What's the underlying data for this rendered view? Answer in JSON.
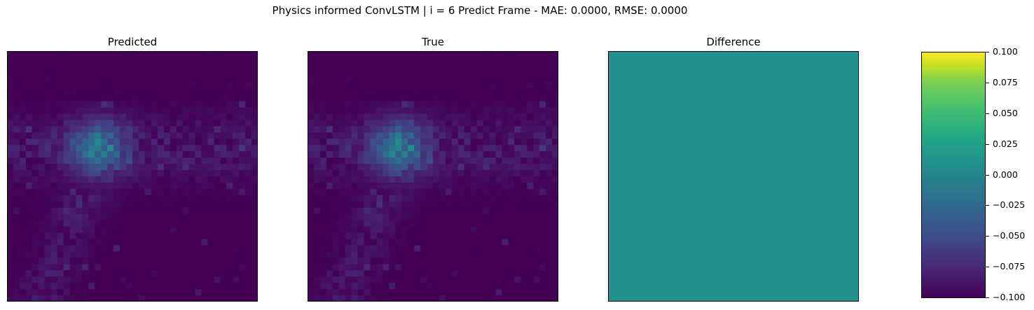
{
  "figure": {
    "suptitle": "Physics informed ConvLSTM | i = 6 Predict Frame - MAE: 0.0000, RMSE: 0.0000"
  },
  "chart_data": [
    {
      "type": "heatmap",
      "title": "Predicted",
      "grid_size": [
        40,
        40
      ],
      "colormap": "viridis",
      "description_source": "visual",
      "axes_ticks": "none"
    },
    {
      "type": "heatmap",
      "title": "True",
      "grid_size": [
        40,
        40
      ],
      "colormap": "viridis",
      "axes_ticks": "none"
    },
    {
      "type": "heatmap",
      "title": "Difference",
      "grid_size": [
        40,
        40
      ],
      "colormap": "viridis",
      "uniform_value": 0.0,
      "axes_ticks": "none"
    }
  ],
  "colorbar": {
    "colormap": "viridis",
    "range": [
      -0.1,
      0.1
    ],
    "ticks": [
      {
        "value": 0.1,
        "label": "0.100"
      },
      {
        "value": 0.075,
        "label": "0.075"
      },
      {
        "value": 0.05,
        "label": "0.050"
      },
      {
        "value": 0.025,
        "label": "0.025"
      },
      {
        "value": 0.0,
        "label": "0.000"
      },
      {
        "value": -0.025,
        "label": "−0.025"
      },
      {
        "value": -0.05,
        "label": "−0.050"
      },
      {
        "value": -0.075,
        "label": "−0.075"
      },
      {
        "value": -0.1,
        "label": "−0.100"
      }
    ]
  },
  "colors": {
    "background": "#440154",
    "difference": "#21918c"
  }
}
